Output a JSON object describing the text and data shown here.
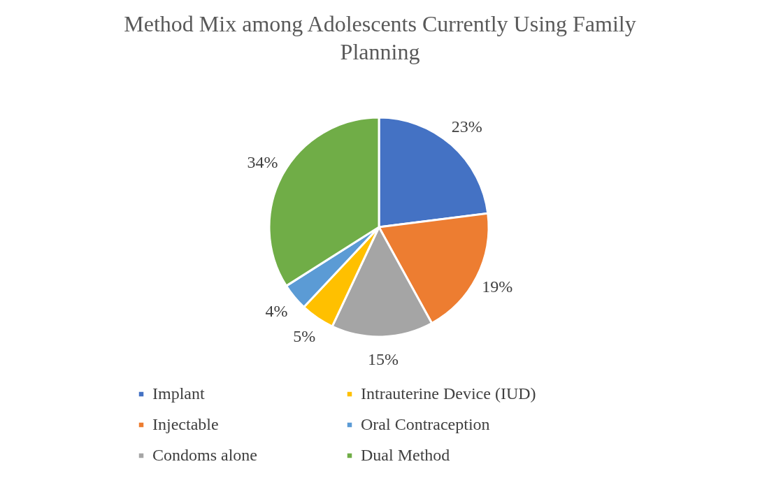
{
  "chart_data": {
    "type": "pie",
    "title": "Method Mix among Adolescents Currently Using Family Planning",
    "categories": [
      "Implant",
      "Injectable",
      "Condoms alone",
      "Intrauterine Device (IUD)",
      "Oral Contraception",
      "Dual Method"
    ],
    "values": [
      23,
      19,
      15,
      5,
      4,
      34
    ],
    "colors": [
      "#4472c4",
      "#ed7d31",
      "#a5a5a5",
      "#ffc000",
      "#5b9bd5",
      "#70ad47"
    ],
    "value_labels": [
      "23%",
      "19%",
      "15%",
      "5%",
      "4%",
      "34%"
    ],
    "legend": "bottom"
  }
}
